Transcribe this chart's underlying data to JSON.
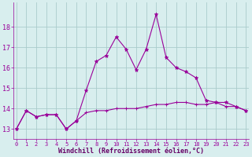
{
  "hours": [
    0,
    1,
    2,
    3,
    4,
    5,
    6,
    7,
    8,
    9,
    10,
    11,
    12,
    13,
    14,
    15,
    16,
    17,
    18,
    19,
    20,
    21,
    22,
    23
  ],
  "temp_line": [
    13.0,
    13.9,
    13.6,
    13.7,
    13.7,
    13.0,
    13.4,
    14.9,
    16.3,
    16.6,
    17.5,
    16.9,
    15.9,
    16.9,
    18.6,
    16.5,
    16.0,
    15.8,
    15.5,
    14.4,
    14.3,
    14.3,
    14.1,
    13.9
  ],
  "wind_line": [
    13.0,
    13.9,
    13.6,
    13.7,
    13.7,
    13.0,
    13.4,
    13.8,
    13.9,
    13.9,
    14.0,
    14.0,
    14.0,
    14.1,
    14.2,
    14.2,
    14.3,
    14.3,
    14.2,
    14.2,
    14.3,
    14.1,
    14.1,
    13.9
  ],
  "color": "#990099",
  "bg_color": "#d8eeee",
  "grid_color": "#aacccc",
  "xlabel": "Windchill (Refroidissement éolien,°C)",
  "ylim": [
    12.5,
    19.2
  ],
  "yticks": [
    13,
    14,
    15,
    16,
    17,
    18
  ],
  "xticks": [
    0,
    1,
    2,
    3,
    4,
    5,
    6,
    7,
    8,
    9,
    10,
    11,
    12,
    13,
    14,
    15,
    16,
    17,
    18,
    19,
    20,
    21,
    22,
    23
  ]
}
